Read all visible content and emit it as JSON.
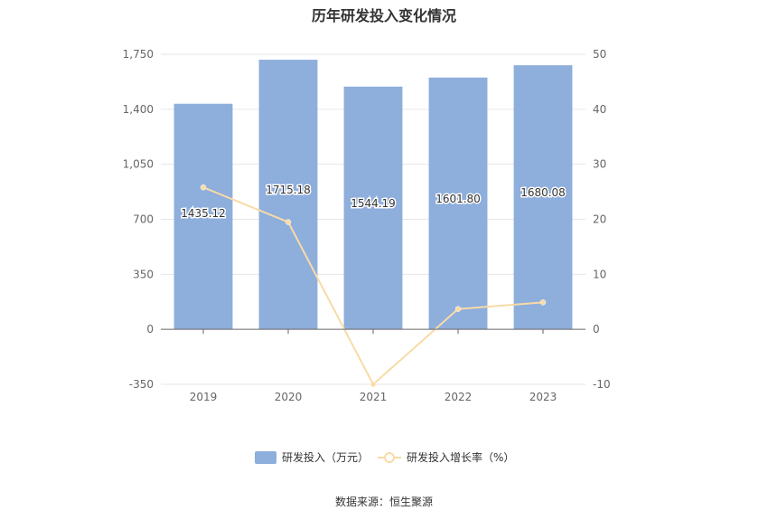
{
  "chart_data": {
    "type": "bar",
    "title": "历年研发投入变化情况",
    "categories": [
      "2019",
      "2020",
      "2021",
      "2022",
      "2023"
    ],
    "y_left": {
      "ylim": [
        -350,
        1750
      ],
      "ticks": [
        -350,
        0,
        350,
        700,
        "1,050",
        "1,400",
        "1,750"
      ]
    },
    "y_right": {
      "ylim": [
        -10,
        50
      ],
      "ticks": [
        -10,
        0,
        10,
        20,
        30,
        40,
        50
      ]
    },
    "series": [
      {
        "name": "研发投入（万元）",
        "type": "bar",
        "axis": "left",
        "color": "#8eaedc",
        "values": [
          1435.12,
          1715.18,
          1544.19,
          1601.8,
          1680.08
        ],
        "labels": [
          "1435.12",
          "1715.18",
          "1544.19",
          "1601.80",
          "1680.08"
        ]
      },
      {
        "name": "研发投入增长率（%）",
        "type": "line",
        "axis": "right",
        "color": "#f8dba6",
        "values": [
          25.8,
          19.5,
          -10.0,
          3.7,
          4.9
        ]
      }
    ],
    "grid": true,
    "legend": "bottom"
  },
  "source": "数据来源：恒生聚源"
}
